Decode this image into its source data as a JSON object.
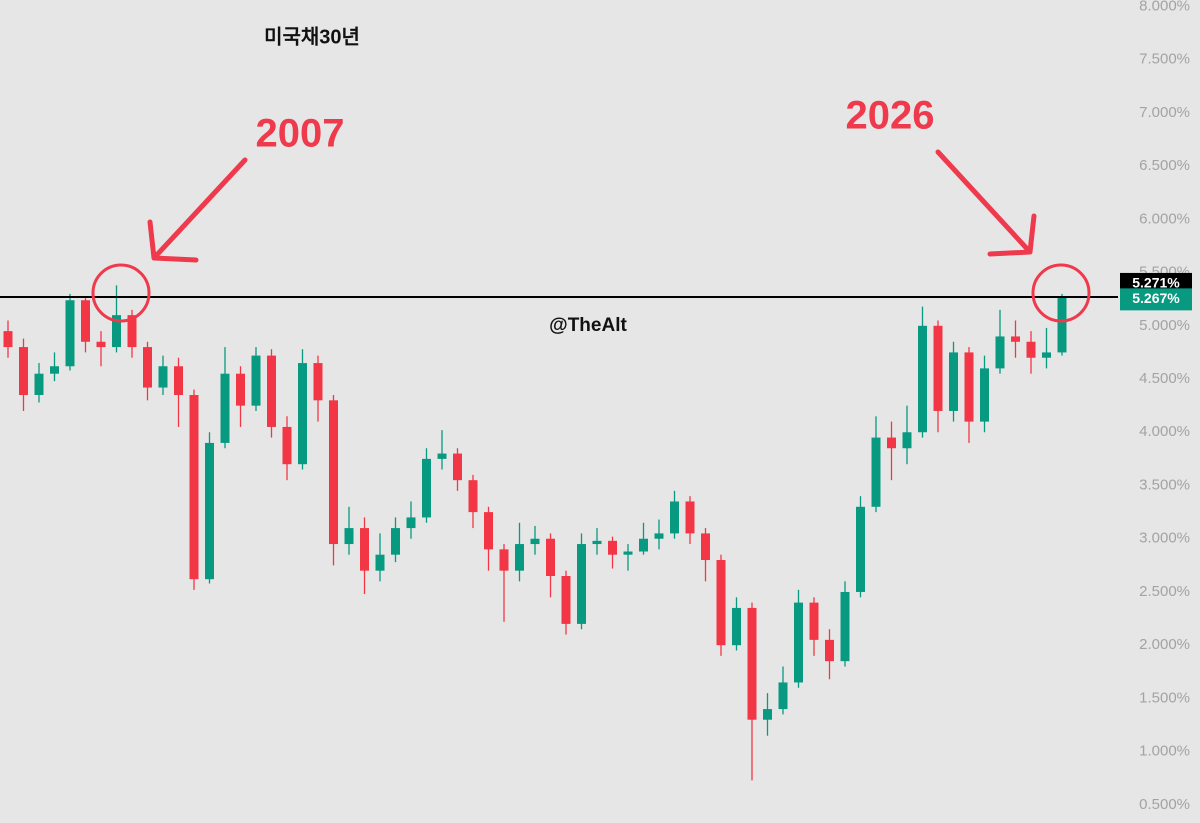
{
  "chart_data": {
    "type": "candlestick",
    "title": "미국채30년",
    "watermark": "@TheAlt",
    "annotations": [
      "2007",
      "2026"
    ],
    "up_color": "#089981",
    "down_color": "#f23645",
    "annotation_color": "#ee3a4c",
    "ylim": [
      0.33,
      8.06
    ],
    "yticks": [
      {
        "value": 0.5,
        "label": "0.500%"
      },
      {
        "value": 1,
        "label": "1.000%"
      },
      {
        "value": 1.5,
        "label": "1.500%"
      },
      {
        "value": 2,
        "label": "2.000%"
      },
      {
        "value": 2.5,
        "label": "2.500%"
      },
      {
        "value": 3,
        "label": "3.000%"
      },
      {
        "value": 3.5,
        "label": "3.500%"
      },
      {
        "value": 4,
        "label": "4.000%"
      },
      {
        "value": 4.5,
        "label": "4.500%"
      },
      {
        "value": 5,
        "label": "5.000%"
      },
      {
        "value": 5.5,
        "label": "5.500%"
      },
      {
        "value": 6,
        "label": "6.000%"
      },
      {
        "value": 6.5,
        "label": "6.500%"
      },
      {
        "value": 7,
        "label": "7.000%"
      },
      {
        "value": 7.5,
        "label": "7.500%"
      },
      {
        "value": 8,
        "label": "8.000%"
      }
    ],
    "hline": {
      "value": 5.271,
      "label": "5.271%"
    },
    "last_price": {
      "value": 5.267,
      "label": "5.267%"
    },
    "open": [
      4.95,
      4.8,
      4.35,
      4.55,
      4.62,
      5.24,
      4.85,
      4.8,
      5.1,
      4.8,
      4.42,
      4.62,
      4.35,
      2.62,
      3.9,
      4.55,
      4.25,
      4.72,
      4.05,
      3.7,
      4.65,
      4.3,
      2.95,
      3.1,
      2.7,
      2.85,
      3.1,
      3.2,
      3.75,
      3.8,
      3.55,
      3.25,
      2.9,
      2.7,
      2.95,
      3.0,
      2.65,
      2.2,
      2.95,
      2.98,
      2.85,
      2.88,
      3.0,
      3.05,
      3.35,
      3.05,
      2.8,
      2.0,
      2.35,
      1.3,
      1.4,
      1.65,
      2.4,
      2.05,
      1.85,
      2.5,
      3.3,
      3.95,
      3.85,
      4.0,
      5.0,
      4.2,
      4.75,
      4.1,
      4.6,
      4.9,
      4.85,
      4.7,
      4.75
    ],
    "high": [
      5.05,
      4.88,
      4.65,
      4.75,
      5.3,
      5.26,
      4.95,
      5.38,
      5.15,
      4.85,
      4.72,
      4.7,
      4.4,
      4.0,
      4.8,
      4.62,
      4.8,
      4.78,
      4.15,
      4.78,
      4.72,
      4.35,
      3.3,
      3.2,
      3.05,
      3.2,
      3.35,
      3.85,
      4.02,
      3.85,
      3.6,
      3.3,
      2.95,
      3.15,
      3.12,
      3.05,
      2.7,
      3.05,
      3.1,
      3.02,
      2.95,
      3.15,
      3.18,
      3.45,
      3.4,
      3.1,
      2.85,
      2.45,
      2.4,
      1.55,
      1.8,
      2.52,
      2.45,
      2.15,
      2.6,
      3.4,
      4.15,
      4.1,
      4.25,
      5.18,
      5.05,
      4.85,
      4.8,
      4.72,
      5.15,
      5.05,
      4.95,
      4.98,
      5.3
    ],
    "low": [
      4.7,
      4.2,
      4.28,
      4.48,
      4.58,
      4.75,
      4.62,
      4.75,
      4.7,
      4.3,
      4.35,
      4.05,
      2.52,
      2.58,
      3.85,
      4.05,
      4.2,
      3.95,
      3.55,
      3.65,
      4.1,
      2.75,
      2.85,
      2.48,
      2.6,
      2.78,
      3.0,
      3.15,
      3.65,
      3.45,
      3.1,
      2.7,
      2.22,
      2.6,
      2.85,
      2.45,
      2.1,
      2.15,
      2.85,
      2.72,
      2.7,
      2.85,
      2.9,
      3.0,
      2.95,
      2.6,
      1.9,
      1.95,
      0.73,
      1.15,
      1.35,
      1.6,
      1.9,
      1.68,
      1.8,
      2.45,
      3.25,
      3.55,
      3.7,
      3.95,
      4.0,
      4.1,
      3.9,
      4.0,
      4.55,
      4.7,
      4.55,
      4.6,
      4.72
    ],
    "close": [
      4.8,
      4.35,
      4.55,
      4.62,
      5.24,
      4.85,
      4.8,
      5.1,
      4.8,
      4.42,
      4.62,
      4.35,
      2.62,
      3.9,
      4.55,
      4.25,
      4.72,
      4.05,
      3.7,
      4.65,
      4.3,
      2.95,
      3.1,
      2.7,
      2.85,
      3.1,
      3.2,
      3.75,
      3.8,
      3.55,
      3.25,
      2.9,
      2.7,
      2.95,
      3.0,
      2.65,
      2.2,
      2.95,
      2.98,
      2.85,
      2.88,
      3.0,
      3.05,
      3.35,
      3.05,
      2.8,
      2.0,
      2.35,
      1.3,
      1.4,
      1.65,
      2.4,
      2.05,
      1.85,
      2.5,
      3.3,
      3.95,
      3.85,
      4.0,
      5.0,
      4.2,
      4.75,
      4.1,
      4.6,
      4.9,
      4.85,
      4.7,
      4.75,
      5.267
    ]
  }
}
